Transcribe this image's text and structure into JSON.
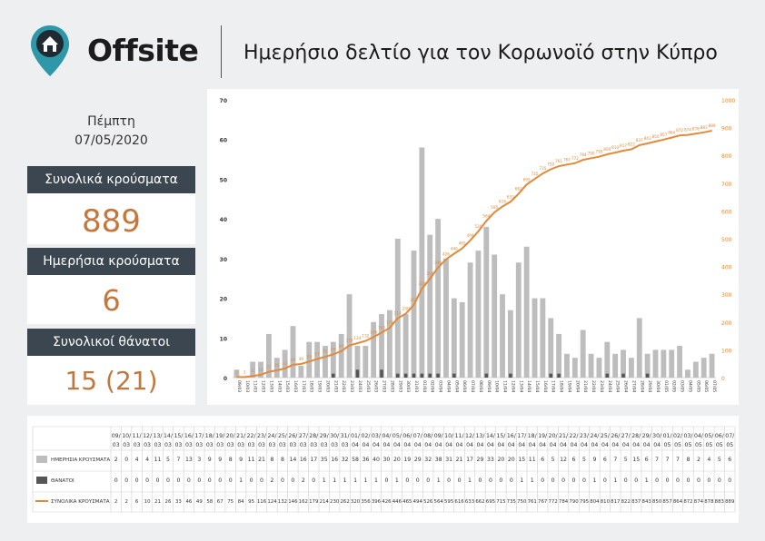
{
  "header": {
    "brand": "Offsite",
    "title": "Ημερήσιο δελτίο για τον Κορωνοϊό στην Κύπρο"
  },
  "date": {
    "weekday": "Πέμπτη",
    "date": "07/05/2020"
  },
  "stats": {
    "total_cases_label": "Συνολικά κρούσματα",
    "total_cases_value": "889",
    "daily_cases_label": "Ημερήσια κρούσματα",
    "daily_cases_value": "6",
    "total_deaths_label": "Συνολικοί θάνατοι",
    "total_deaths_value": "15 (21)"
  },
  "colors": {
    "accent": "#c5763a",
    "header_bar": "#3c4651",
    "bar_cases": "#bdbdbd",
    "bar_deaths": "#555555",
    "line_total": "#e08a3c"
  },
  "chart_data": {
    "type": "bar",
    "y_left_range": [
      0,
      70
    ],
    "y_right_range": [
      0,
      1000
    ],
    "y_left_ticks": [
      0,
      10,
      20,
      30,
      40,
      50,
      60,
      70
    ],
    "y_right_ticks": [
      0,
      100,
      200,
      300,
      400,
      500,
      600,
      700,
      800,
      900,
      1000
    ],
    "categories": [
      "09/03",
      "10/03",
      "11/03",
      "12/03",
      "13/03",
      "14/03",
      "15/03",
      "16/03",
      "17/03",
      "18/03",
      "19/03",
      "20/03",
      "21/03",
      "22/03",
      "23/03",
      "24/03",
      "25/03",
      "26/03",
      "27/03",
      "28/03",
      "29/03",
      "30/03",
      "31/03",
      "01/04",
      "02/04",
      "03/04",
      "04/04",
      "05/04",
      "06/04",
      "07/04",
      "08/04",
      "09/04",
      "10/04",
      "11/04",
      "12/04",
      "13/04",
      "14/04",
      "15/04",
      "16/04",
      "17/04",
      "18/04",
      "19/04",
      "20/04",
      "21/04",
      "22/04",
      "23/04",
      "24/04",
      "25/04",
      "26/04",
      "27/04",
      "28/04",
      "29/04",
      "30/04",
      "01/05",
      "02/05",
      "03/05",
      "04/05",
      "05/05",
      "06/05",
      "07/05"
    ],
    "series": [
      {
        "name": "ΗΜΕΡΗΣΙΑ ΚΡΟΥΣΜΑΤΑ",
        "kind": "bar",
        "axis": "left",
        "values": [
          2,
          0,
          4,
          4,
          11,
          5,
          7,
          13,
          3,
          9,
          9,
          8,
          9,
          11,
          21,
          8,
          8,
          14,
          16,
          17,
          35,
          16,
          32,
          58,
          36,
          40,
          30,
          20,
          19,
          29,
          32,
          38,
          31,
          21,
          17,
          29,
          33,
          20,
          20,
          15,
          11,
          6,
          5,
          12,
          6,
          5,
          9,
          6,
          7,
          5,
          15,
          6,
          7,
          7,
          7,
          8,
          2,
          4,
          5,
          6
        ]
      },
      {
        "name": "ΘΑΝΑΤΟΙ",
        "kind": "bar",
        "axis": "left",
        "values": [
          0,
          0,
          0,
          0,
          0,
          0,
          0,
          0,
          0,
          0,
          0,
          0,
          1,
          0,
          0,
          2,
          0,
          0,
          2,
          0,
          1,
          1,
          1,
          1,
          1,
          1,
          0,
          1,
          0,
          0,
          0,
          1,
          0,
          0,
          1,
          0,
          0,
          0,
          0,
          1,
          1,
          0,
          0,
          0,
          0,
          0,
          1,
          0,
          1,
          0,
          0,
          1,
          0,
          0,
          0,
          0,
          0,
          0,
          0,
          0
        ]
      },
      {
        "name": "ΣΥΝΟΛΙΚΑ ΚΡΟΥΣΜΑΤΑ",
        "kind": "line",
        "axis": "right",
        "values": [
          2,
          2,
          6,
          10,
          21,
          26,
          33,
          46,
          49,
          58,
          67,
          75,
          84,
          95,
          116,
          124,
          132,
          146,
          162,
          179,
          214,
          230,
          262,
          320,
          356,
          396,
          426,
          446,
          465,
          494,
          526,
          564,
          595,
          616,
          633,
          662,
          695,
          715,
          735,
          750,
          761,
          767,
          772,
          784,
          790,
          795,
          804,
          810,
          817,
          822,
          837,
          843,
          850,
          857,
          864,
          872,
          874,
          878,
          883,
          889
        ]
      }
    ]
  },
  "table": {
    "dates_top": [
      "09/",
      "10/",
      "11/",
      "12/",
      "13/",
      "14/",
      "15/",
      "16/",
      "17/",
      "18/",
      "19/",
      "20/",
      "21/",
      "22/",
      "23/",
      "24/",
      "25/",
      "26/",
      "27/",
      "28/",
      "29/",
      "30/",
      "31/",
      "01/",
      "02/",
      "03/",
      "04/",
      "05/",
      "06/",
      "07/",
      "08/",
      "09/",
      "10/",
      "11/",
      "12/",
      "13/",
      "14/",
      "15/",
      "16/",
      "17/",
      "18/",
      "19/",
      "20/",
      "21/",
      "22/",
      "23/",
      "24/",
      "25/",
      "26/",
      "27/",
      "28/",
      "29/",
      "30/",
      "01/",
      "02/",
      "03/",
      "04/",
      "05/",
      "06/",
      "07/"
    ],
    "dates_bottom": [
      "03",
      "03",
      "03",
      "03",
      "03",
      "03",
      "03",
      "03",
      "03",
      "03",
      "03",
      "03",
      "03",
      "03",
      "03",
      "03",
      "03",
      "03",
      "03",
      "03",
      "03",
      "03",
      "03",
      "04",
      "04",
      "04",
      "04",
      "04",
      "04",
      "04",
      "04",
      "04",
      "04",
      "04",
      "04",
      "04",
      "04",
      "04",
      "04",
      "04",
      "04",
      "04",
      "04",
      "04",
      "04",
      "04",
      "04",
      "04",
      "04",
      "04",
      "04",
      "04",
      "04",
      "05",
      "05",
      "05",
      "05",
      "05",
      "05",
      "05"
    ]
  }
}
